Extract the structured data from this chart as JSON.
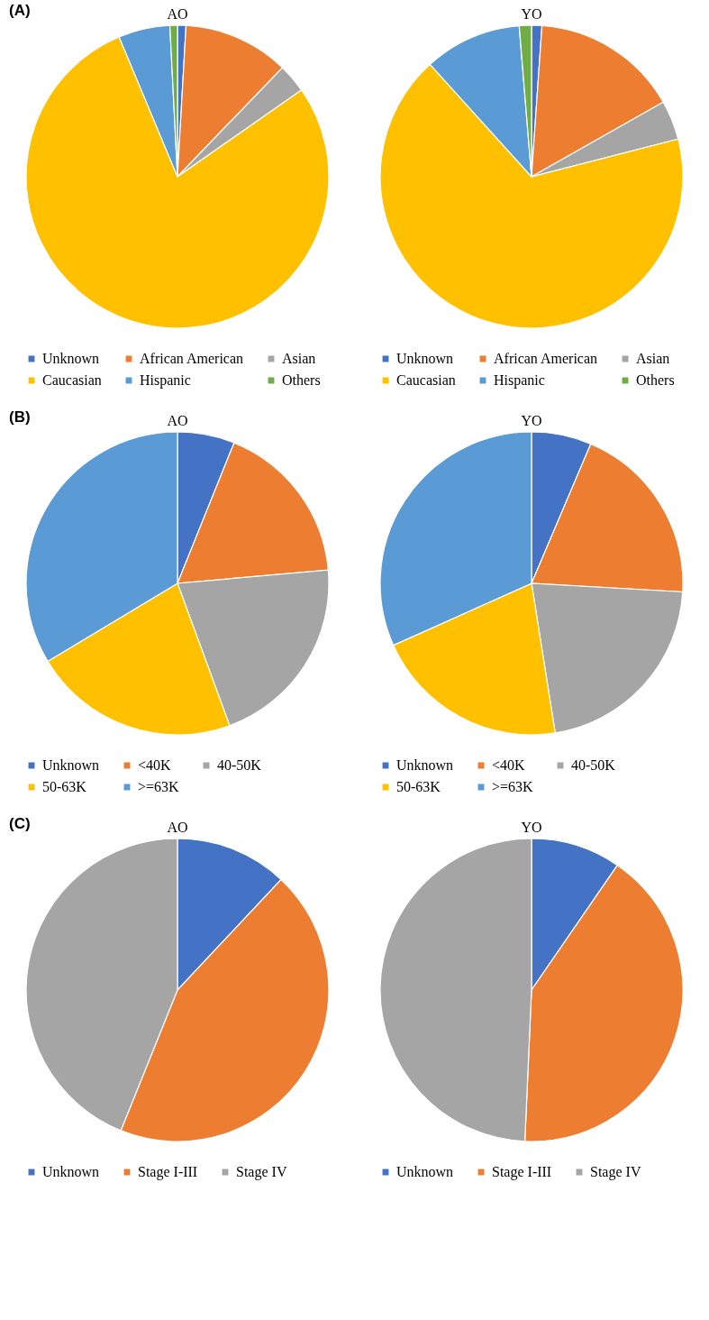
{
  "chart_data": [
    {
      "type": "pie",
      "title": "AO",
      "annotations": [
        "(A)"
      ],
      "categories": [
        "Unknown",
        "African American",
        "Asian",
        "Caucasian",
        "Hispanic",
        "Others"
      ],
      "values": [
        0.9,
        11.3,
        3.1,
        78.4,
        5.5,
        0.8
      ],
      "colors": [
        "#4472c4",
        "#ed7d31",
        "#a5a5a5",
        "#ffc000",
        "#5b9bd5",
        "#70ad47"
      ],
      "legend": "bottom"
    },
    {
      "type": "pie",
      "title": "YO",
      "categories": [
        "Unknown",
        "African American",
        "Asian",
        "Caucasian",
        "Hispanic",
        "Others"
      ],
      "values": [
        1.1,
        15.7,
        4.2,
        67.3,
        10.4,
        1.3
      ],
      "colors": [
        "#4472c4",
        "#ed7d31",
        "#a5a5a5",
        "#ffc000",
        "#5b9bd5",
        "#70ad47"
      ],
      "legend": "bottom"
    },
    {
      "type": "pie",
      "title": "AO",
      "annotations": [
        "(B)"
      ],
      "categories": [
        "Unknown",
        "<40K",
        "40-50K",
        "50-63K",
        ">=63K"
      ],
      "values": [
        6.1,
        17.5,
        20.8,
        22.0,
        33.6
      ],
      "colors": [
        "#4472c4",
        "#ed7d31",
        "#a5a5a5",
        "#ffc000",
        "#5b9bd5"
      ],
      "legend": "bottom"
    },
    {
      "type": "pie",
      "title": "YO",
      "categories": [
        "Unknown",
        "<40K",
        "40-50K",
        "50-63K",
        ">=63K"
      ],
      "values": [
        6.4,
        19.5,
        21.6,
        20.8,
        31.7
      ],
      "colors": [
        "#4472c4",
        "#ed7d31",
        "#a5a5a5",
        "#ffc000",
        "#5b9bd5"
      ],
      "legend": "bottom"
    },
    {
      "type": "pie",
      "title": "AO",
      "annotations": [
        "(C)"
      ],
      "categories": [
        "Unknown",
        "Stage I-III",
        "Stage IV"
      ],
      "values": [
        12.0,
        44.1,
        43.9
      ],
      "colors": [
        "#4472c4",
        "#ed7d31",
        "#a5a5a5"
      ],
      "legend": "bottom"
    },
    {
      "type": "pie",
      "title": "YO",
      "categories": [
        "Unknown",
        "Stage I-III",
        "Stage IV"
      ],
      "values": [
        9.6,
        41.1,
        49.3
      ],
      "colors": [
        "#4472c4",
        "#ed7d31",
        "#a5a5a5"
      ],
      "legend": "bottom"
    }
  ]
}
